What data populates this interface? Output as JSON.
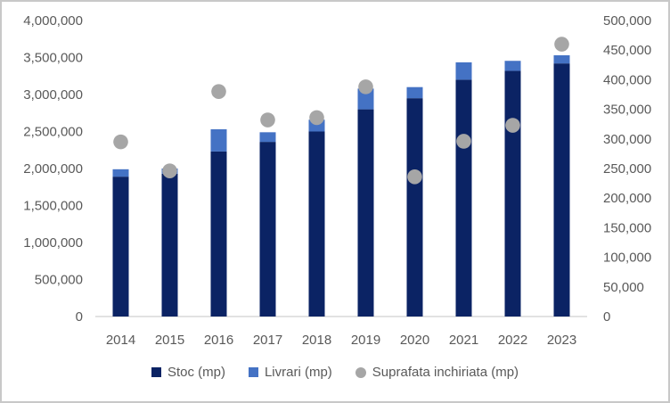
{
  "chart_data": {
    "type": "bar",
    "stacked": true,
    "grid": false,
    "title": "",
    "legend_position": "bottom",
    "categories": [
      "2014",
      "2015",
      "2016",
      "2017",
      "2018",
      "2019",
      "2020",
      "2021",
      "2022",
      "2023"
    ],
    "series": [
      {
        "name": "Stoc (mp)",
        "type": "bar",
        "axis": "left",
        "color": "#0b2364",
        "values": [
          1890000,
          1930000,
          2230000,
          2360000,
          2500000,
          2800000,
          2950000,
          3200000,
          3320000,
          3420000
        ]
      },
      {
        "name": "Livrari (mp)",
        "type": "bar",
        "axis": "left",
        "color": "#4472c4",
        "values": [
          100000,
          70000,
          300000,
          130000,
          160000,
          280000,
          150000,
          235000,
          135000,
          110000
        ]
      },
      {
        "name": "Suprafata inchiriata (mp)",
        "type": "scatter",
        "axis": "right",
        "color": "#a6a6a6",
        "values": [
          295000,
          246000,
          380000,
          332000,
          336000,
          388000,
          236000,
          296000,
          323000,
          460000
        ]
      }
    ],
    "left_axis": {
      "min": 0,
      "max": 4000000,
      "step": 500000,
      "tick_labels": [
        "0",
        "500,000",
        "1,000,000",
        "1,500,000",
        "2,000,000",
        "2,500,000",
        "3,000,000",
        "3,500,000",
        "4,000,000"
      ]
    },
    "right_axis": {
      "min": 0,
      "max": 500000,
      "step": 50000,
      "tick_labels": [
        "0",
        "50,000",
        "100,000",
        "150,000",
        "200,000",
        "250,000",
        "300,000",
        "350,000",
        "400,000",
        "450,000",
        "500,000"
      ]
    }
  },
  "colors": {
    "axis_text": "#595959",
    "axis_line": "#d9d9d9",
    "frame_border": "#c8c8c8",
    "background": "#ffffff"
  }
}
